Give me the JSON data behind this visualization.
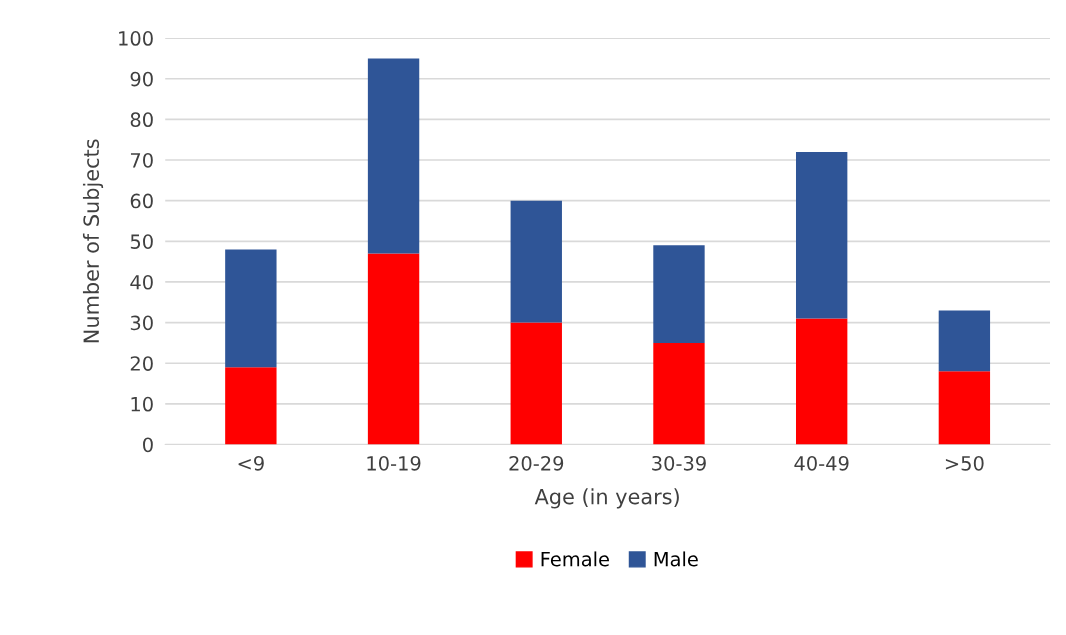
{
  "chart_data": {
    "type": "bar",
    "stacked": true,
    "xlabel": "Age (in years)",
    "ylabel": "Number of Subjects",
    "categories": [
      "<9",
      "10-19",
      "20-29",
      "30-39",
      "40-49",
      ">50"
    ],
    "series": [
      {
        "name": "Female",
        "color": "#ff0000",
        "values": [
          19,
          47,
          30,
          25,
          31,
          18
        ]
      },
      {
        "name": "Male",
        "color": "#2f5597",
        "values": [
          29,
          48,
          30,
          24,
          41,
          15
        ]
      }
    ],
    "ylim": [
      0,
      100
    ],
    "yticks": [
      0,
      10,
      20,
      30,
      40,
      50,
      60,
      70,
      80,
      90,
      100
    ],
    "grid": "y",
    "legend": "bottom"
  }
}
